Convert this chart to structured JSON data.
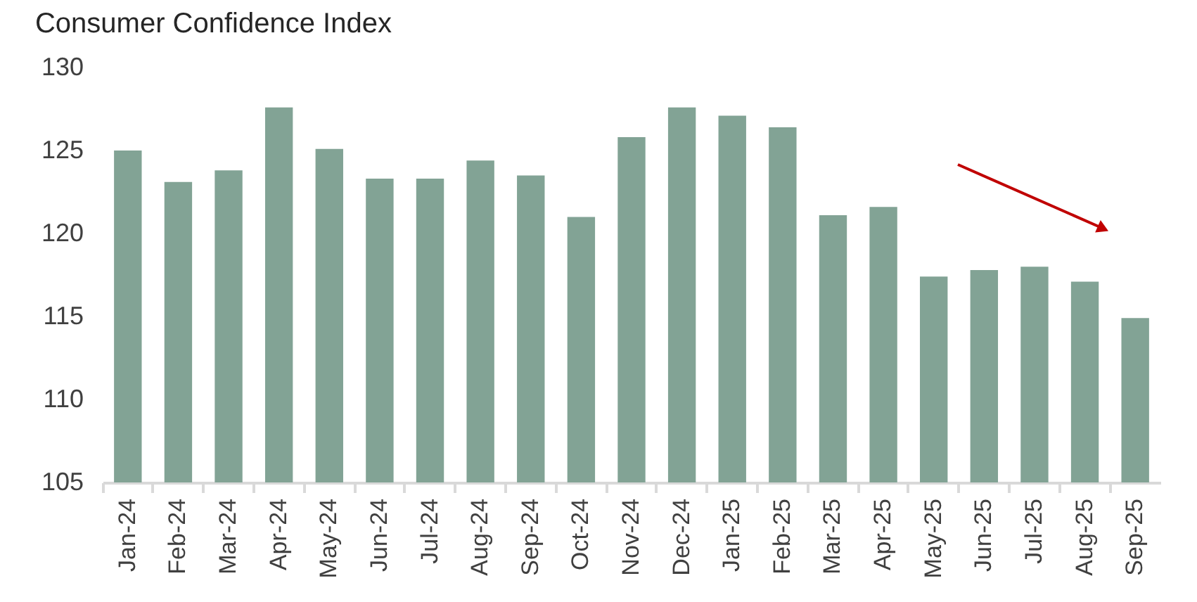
{
  "chart_data": {
    "type": "bar",
    "title": "Consumer Confidence Index",
    "categories": [
      "Jan-24",
      "Feb-24",
      "Mar-24",
      "Apr-24",
      "May-24",
      "Jun-24",
      "Jul-24",
      "Aug-24",
      "Sep-24",
      "Oct-24",
      "Nov-24",
      "Dec-24",
      "Jan-25",
      "Feb-25",
      "Mar-25",
      "Apr-25",
      "May-25",
      "Jun-25",
      "Jul-25",
      "Aug-25",
      "Sep-25"
    ],
    "values": [
      125.0,
      123.1,
      123.8,
      127.6,
      125.1,
      123.3,
      123.3,
      124.4,
      123.5,
      121.0,
      125.8,
      127.6,
      127.1,
      126.4,
      121.1,
      121.6,
      117.4,
      117.8,
      118.0,
      117.1,
      114.9
    ],
    "color": "#82a395",
    "ylim": [
      105,
      130
    ],
    "yticks": [
      105,
      110,
      115,
      120,
      125,
      130
    ],
    "grid": false
  }
}
